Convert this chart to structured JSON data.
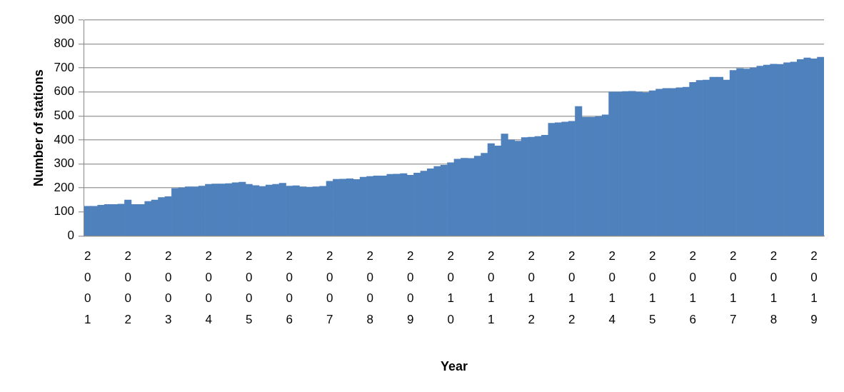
{
  "chart_data": {
    "type": "bar",
    "xlabel": "Year",
    "ylabel": "Number of stations",
    "categories": [
      "2001",
      null,
      null,
      null,
      null,
      null,
      "2002",
      null,
      null,
      null,
      null,
      null,
      "2003",
      null,
      null,
      null,
      null,
      null,
      "2004",
      null,
      null,
      null,
      null,
      null,
      "2005",
      null,
      null,
      null,
      null,
      null,
      "2006",
      null,
      null,
      null,
      null,
      null,
      "2007",
      null,
      null,
      null,
      null,
      null,
      "2008",
      null,
      null,
      null,
      null,
      null,
      "2009",
      null,
      null,
      null,
      null,
      null,
      "2010",
      null,
      null,
      null,
      null,
      null,
      "2011",
      null,
      null,
      null,
      null,
      null,
      "2012",
      null,
      null,
      null,
      null,
      null,
      "2012",
      null,
      null,
      null,
      null,
      null,
      "2014",
      null,
      null,
      null,
      null,
      null,
      "2015",
      null,
      null,
      null,
      null,
      null,
      "2016",
      null,
      null,
      null,
      null,
      null,
      "2017",
      null,
      null,
      null,
      null,
      null,
      "2018",
      null,
      null,
      null,
      null,
      null,
      "2019",
      null
    ],
    "values": [
      124,
      124,
      128,
      131,
      131,
      133,
      150,
      131,
      131,
      144,
      150,
      160,
      164,
      198,
      200,
      205,
      205,
      208,
      215,
      217,
      217,
      218,
      222,
      224,
      215,
      210,
      206,
      212,
      215,
      220,
      208,
      209,
      205,
      203,
      205,
      207,
      228,
      236,
      237,
      238,
      235,
      245,
      248,
      250,
      250,
      257,
      258,
      260,
      253,
      262,
      270,
      280,
      290,
      295,
      305,
      320,
      324,
      323,
      333,
      345,
      385,
      375,
      425,
      400,
      395,
      410,
      412,
      415,
      420,
      470,
      472,
      475,
      478,
      540,
      495,
      495,
      498,
      505,
      600,
      600,
      602,
      603,
      600,
      598,
      605,
      612,
      615,
      615,
      618,
      620,
      640,
      648,
      650,
      662,
      662,
      650,
      690,
      698,
      696,
      700,
      708,
      712,
      716,
      715,
      722,
      725,
      735,
      742,
      738,
      745
    ],
    "color": "#4f81bd",
    "ylim": [
      0,
      900
    ],
    "yticks": [
      0,
      100,
      200,
      300,
      400,
      500,
      600,
      700,
      800,
      900
    ],
    "grid": "y"
  }
}
